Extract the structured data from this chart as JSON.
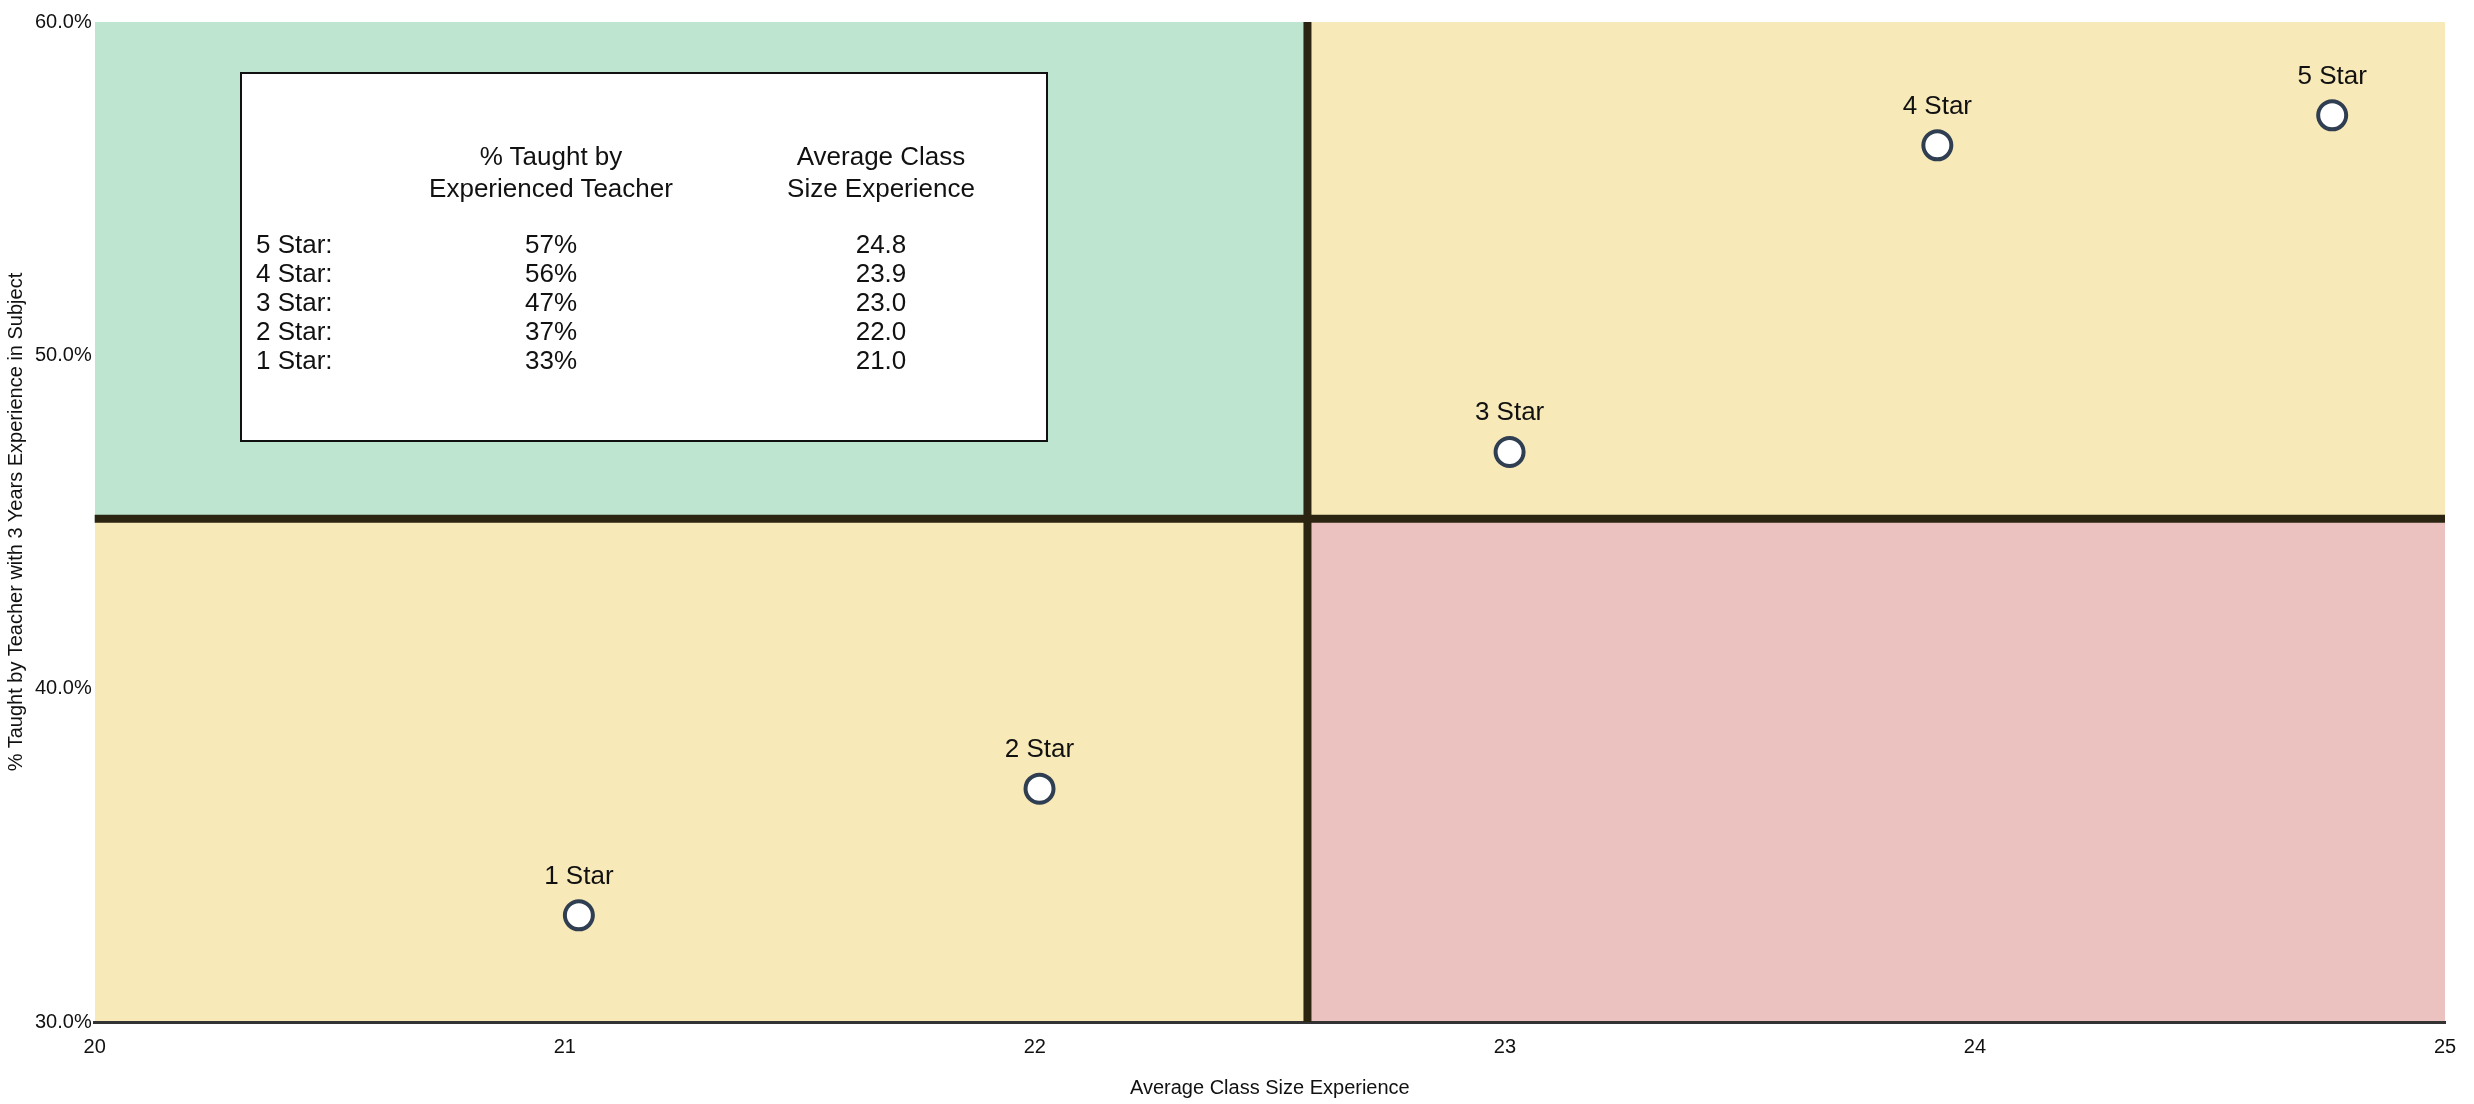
{
  "chart_data": {
    "type": "scatter",
    "xlabel": "Average Class Size Experience",
    "ylabel": "% Taught by Teacher with 3 Years Experience in Subject",
    "x": [
      21.03,
      22.01,
      23.01,
      23.92,
      24.76
    ],
    "series": [
      {
        "color": "#2f3e50",
        "values": [
          33.2,
          37.0,
          47.1,
          56.3,
          57.2
        ]
      }
    ],
    "marker": "circle",
    "grid": false,
    "legend": false,
    "xlim": [
      20,
      25
    ],
    "xticks": [
      20,
      21,
      22,
      23,
      24,
      25
    ],
    "ylim": [
      30,
      60
    ],
    "yticks": [
      {
        "value": 30,
        "label": "30.0%"
      },
      {
        "value": 40,
        "label": "40.0%"
      },
      {
        "value": 50,
        "label": "50.0%"
      },
      {
        "value": 60,
        "label": "60.0%"
      }
    ],
    "ref_lines": [
      {
        "axis": "x",
        "value": 22.58,
        "color": "#2b2410"
      },
      {
        "axis": "y",
        "value": 45.1,
        "color": "#2b2410"
      }
    ],
    "annotations": [
      {
        "text": "1 Star",
        "x": 21.03,
        "y": 33.2
      },
      {
        "text": "2 Star",
        "x": 22.01,
        "y": 37.0
      },
      {
        "text": "3 Star",
        "x": 23.01,
        "y": 47.1
      },
      {
        "text": "4 Star",
        "x": 23.92,
        "y": 56.3
      },
      {
        "text": "5 Star",
        "x": 24.76,
        "y": 57.2
      },
      "% Taught by\nExperienced Teacher",
      "Average Class\nSize Experience",
      "5 Star:",
      "57%",
      "24.8",
      "4 Star:",
      "56%",
      "23.9",
      "3 Star:",
      "47%",
      "23.0",
      "2 Star:",
      "37%",
      "22.0",
      "1 Star:",
      "33%",
      "21.0"
    ]
  }
}
